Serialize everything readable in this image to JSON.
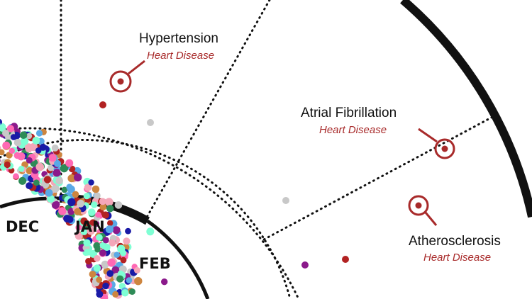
{
  "months": {
    "dec": "DEC",
    "jan": "JAN",
    "feb": "FEB"
  },
  "annotations": [
    {
      "name": "Hypertension",
      "category": "Heart Disease"
    },
    {
      "name": "Atrial Fibrillation",
      "category": "Heart Disease"
    },
    {
      "name": "Atherosclerosis",
      "category": "Heart Disease"
    }
  ],
  "colors": {
    "marker": "#a82a2a",
    "ring_line": "#111111",
    "dot_palette": [
      "#b22222",
      "#f4a7b9",
      "#1a1aa6",
      "#8b1a8b",
      "#5aa9e6",
      "#7fffd4",
      "#cd853f",
      "#c8c8c8",
      "#ff69b4",
      "#2e8b57"
    ]
  }
}
